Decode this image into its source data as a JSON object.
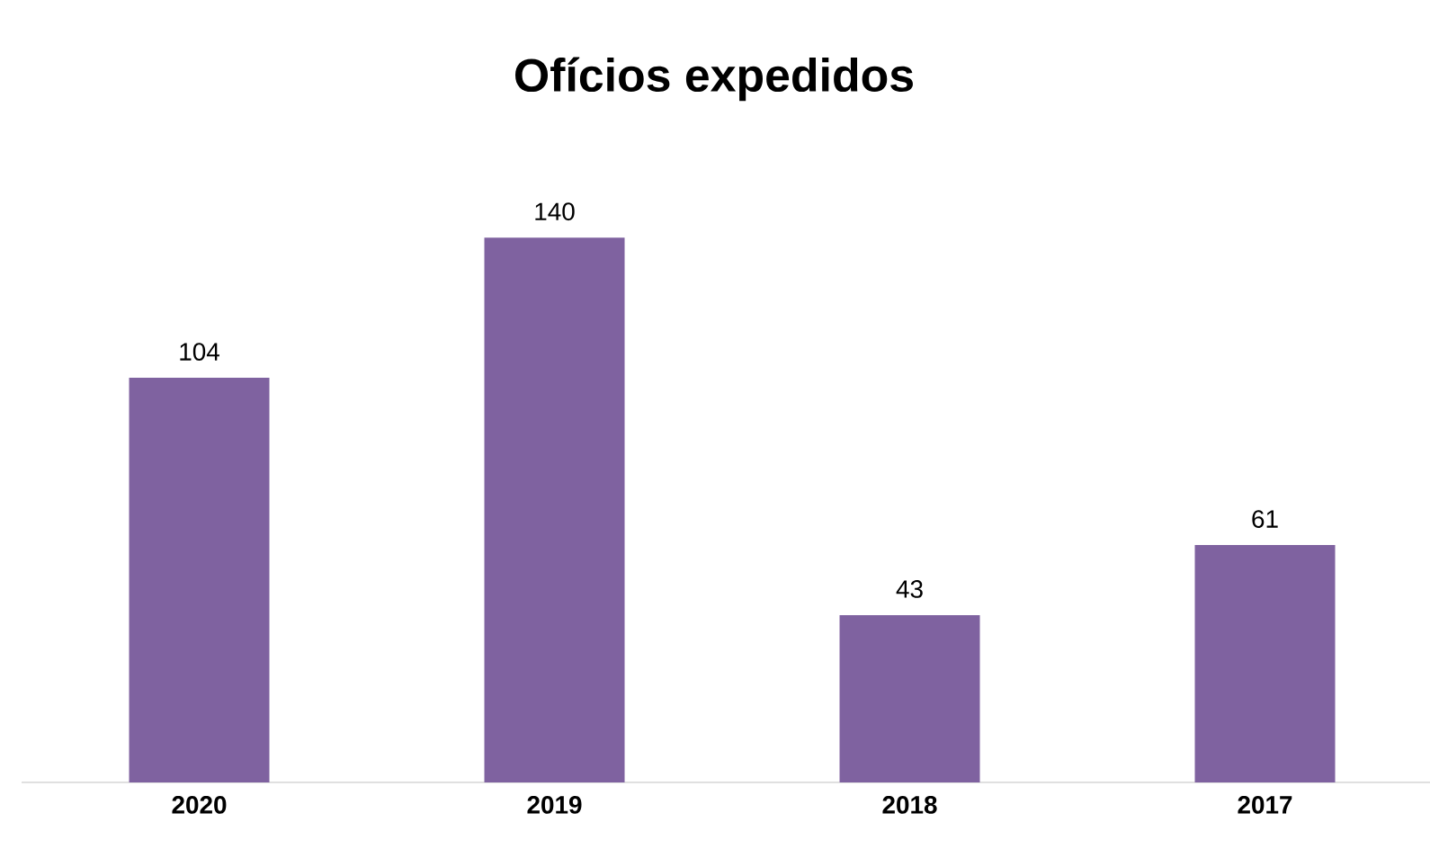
{
  "chart_data": {
    "type": "bar",
    "title": "Ofícios expedidos",
    "categories": [
      "2020",
      "2019",
      "2018",
      "2017"
    ],
    "values": [
      104,
      140,
      43,
      61
    ],
    "color": "#7f62a0",
    "data_labels": true
  }
}
